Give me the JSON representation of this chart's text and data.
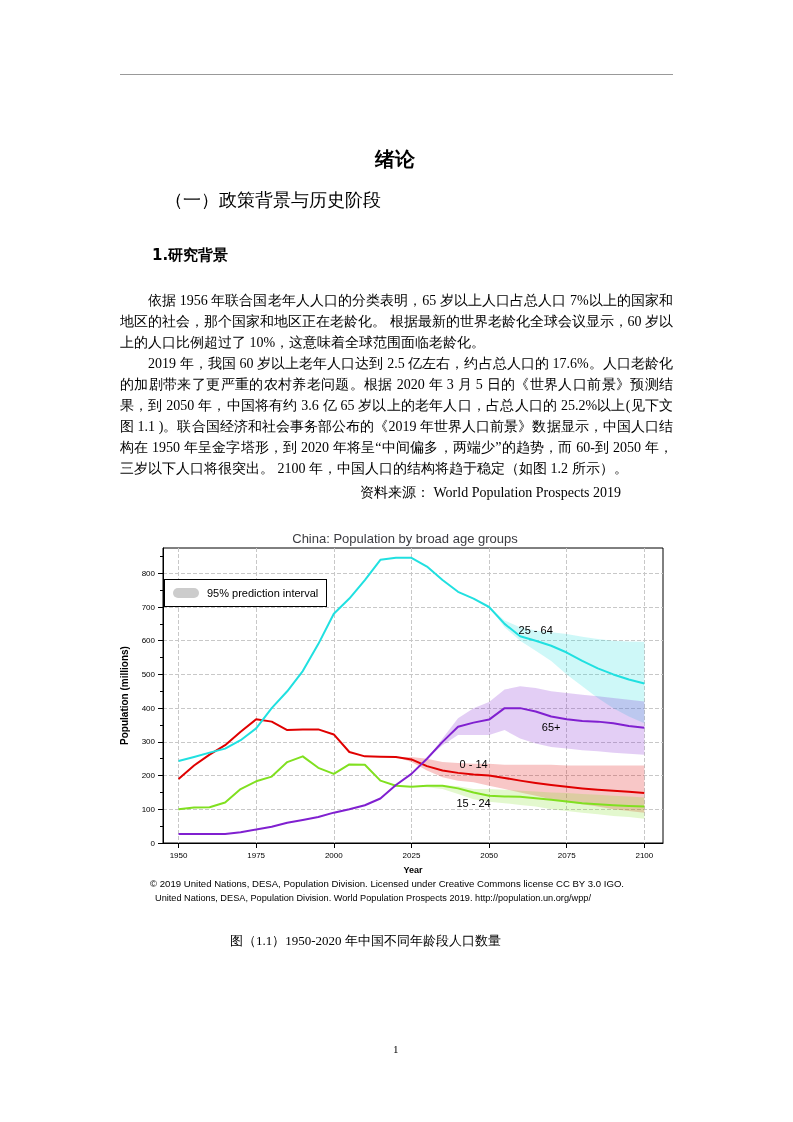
{
  "chart_data": {
    "type": "line",
    "title": "China: Population by broad age groups",
    "xlabel": "Year",
    "ylabel": "Population (millions)",
    "legend_title": "95% prediction interval",
    "grid": true,
    "marker": "none",
    "line_style": "solid",
    "x": [
      1950,
      1955,
      1960,
      1965,
      1970,
      1975,
      1980,
      1985,
      1990,
      1995,
      2000,
      2005,
      2010,
      2015,
      2020,
      2025,
      2030,
      2035,
      2040,
      2045,
      2050,
      2055,
      2060,
      2065,
      2070,
      2075,
      2080,
      2085,
      2090,
      2095,
      2100
    ],
    "xlim": [
      1945,
      2106
    ],
    "xticks": [
      1950,
      1975,
      2000,
      2025,
      2050,
      2075,
      2100
    ],
    "ylim": [
      0,
      875
    ],
    "yticks": [
      0,
      100,
      200,
      300,
      400,
      500,
      600,
      700,
      800
    ],
    "series": [
      {
        "name": "0 - 14",
        "color": "#e00000",
        "values": [
          190,
          230,
          262,
          290,
          330,
          367,
          360,
          335,
          337,
          337,
          322,
          270,
          257,
          256,
          255,
          248,
          228,
          215,
          208,
          203,
          200,
          193,
          185,
          178,
          172,
          167,
          162,
          158,
          155,
          152,
          148
        ],
        "lower": [
          null,
          null,
          null,
          null,
          null,
          null,
          null,
          null,
          null,
          null,
          null,
          null,
          null,
          null,
          255,
          240,
          215,
          195,
          185,
          180,
          170,
          160,
          150,
          140,
          130,
          122,
          115,
          108,
          100,
          95,
          90
        ],
        "upper": [
          null,
          null,
          null,
          null,
          null,
          null,
          null,
          null,
          null,
          null,
          null,
          null,
          null,
          null,
          255,
          255,
          250,
          240,
          237,
          235,
          235,
          232,
          232,
          232,
          232,
          230,
          230,
          230,
          230,
          230,
          230
        ]
      },
      {
        "name": "15 - 24",
        "color": "#80e020",
        "values": [
          100,
          105,
          106,
          120,
          160,
          183,
          197,
          240,
          257,
          223,
          205,
          233,
          232,
          185,
          170,
          167,
          170,
          170,
          162,
          150,
          140,
          138,
          137,
          133,
          128,
          123,
          118,
          115,
          112,
          110,
          108
        ],
        "lower": [
          null,
          null,
          null,
          null,
          null,
          null,
          null,
          null,
          null,
          null,
          null,
          null,
          null,
          null,
          170,
          167,
          165,
          160,
          145,
          130,
          122,
          118,
          113,
          108,
          100,
          95,
          90,
          85,
          80,
          77,
          72
        ],
        "upper": [
          null,
          null,
          null,
          null,
          null,
          null,
          null,
          null,
          null,
          null,
          null,
          null,
          null,
          null,
          170,
          167,
          172,
          172,
          168,
          160,
          160,
          158,
          155,
          153,
          150,
          148,
          145,
          143,
          140,
          138,
          135
        ]
      },
      {
        "name": "25 - 64",
        "color": "#20e0e0",
        "values": [
          243,
          255,
          268,
          280,
          305,
          340,
          400,
          450,
          510,
          590,
          680,
          725,
          780,
          840,
          846,
          846,
          820,
          780,
          745,
          725,
          700,
          650,
          613,
          600,
          585,
          565,
          540,
          518,
          500,
          485,
          473
        ],
        "lower": [
          null,
          null,
          null,
          null,
          null,
          null,
          null,
          null,
          null,
          null,
          null,
          null,
          null,
          null,
          846,
          846,
          820,
          780,
          745,
          725,
          700,
          640,
          600,
          570,
          540,
          500,
          465,
          430,
          400,
          375,
          355
        ],
        "upper": [
          null,
          null,
          null,
          null,
          null,
          null,
          null,
          null,
          null,
          null,
          null,
          null,
          null,
          null,
          846,
          846,
          820,
          780,
          745,
          725,
          700,
          660,
          640,
          630,
          625,
          620,
          612,
          605,
          600,
          598,
          597
        ]
      },
      {
        "name": "65+",
        "color": "#8020d0",
        "values": [
          27,
          27,
          27,
          27,
          32,
          40,
          48,
          60,
          68,
          77,
          90,
          100,
          112,
          132,
          172,
          205,
          250,
          300,
          345,
          357,
          366,
          400,
          400,
          390,
          375,
          367,
          362,
          360,
          355,
          347,
          342
        ],
        "lower": [
          null,
          null,
          null,
          null,
          null,
          null,
          null,
          null,
          null,
          null,
          null,
          null,
          null,
          null,
          172,
          205,
          250,
          290,
          320,
          320,
          320,
          335,
          310,
          295,
          285,
          280,
          275,
          272,
          268,
          265,
          262
        ],
        "upper": [
          null,
          null,
          null,
          null,
          null,
          null,
          null,
          null,
          null,
          null,
          null,
          null,
          null,
          null,
          172,
          205,
          250,
          310,
          370,
          400,
          418,
          455,
          465,
          460,
          450,
          445,
          440,
          435,
          430,
          425,
          420
        ]
      }
    ],
    "annotations": [
      "绪论",
      "（一）政策背景与历史阶段",
      "1.研究背景",
      "依据 1956 年联合国老年人人口的分类表明，65 岁以上人口占总人口 7%以上的国家和地区的社会，那个国家和地区正在老龄化。 根据最新的世界老龄化全球会议显示，60 岁以上的人口比例超过了 10%，这意味着全球范围面临老龄化。",
      "2019 年，我国 60 岁以上老年人口达到 2.5 亿左右，约占总人口的 17.6%。人口老龄化的加剧带来了更严重的农村养老问题。根据 2020 年 3 月 5 日的《世界人口前景》预测结果，到 2050 年，中国将有约 3.6 亿 65 岁以上的老年人口，占总人口的 25.2%以上(见下文图 1.1 )。联合国经济和社会事务部公布的《2019 年世界人口前景》数据显示，中国人口结构在 1950 年呈金字塔形，到 2020 年将呈“中间偏多，两端少”的趋势，而 60-到 2050 年，三岁以下人口将很突出。 2100 年，中国人口的结构将趋于稳定（如图 1.2 所示）。",
      "资料来源： World Population Prospects 2019",
      "© 2019 United Nations, DESA, Population Division. Licensed under Creative Commons license CC BY 3.0 IGO.",
      "United Nations, DESA, Population Division. World Population Prospects 2019. http://population.un.org/wpp/",
      "图（1.1）1950-2020 年中国不同年龄段人口数量",
      "1"
    ]
  }
}
